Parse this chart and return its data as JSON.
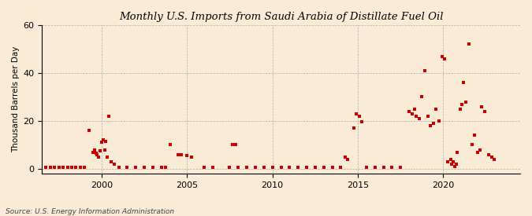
{
  "title": "Monthly U.S. Imports from Saudi Arabia of Distillate Fuel Oil",
  "ylabel": "Thousand Barrels per Day",
  "source": "Source: U.S. Energy Information Administration",
  "background_color": "#faebd7",
  "point_color": "#cc0000",
  "marker_size": 9,
  "ylim": [
    -2,
    60
  ],
  "yticks": [
    0,
    20,
    40,
    60
  ],
  "xtick_labels": [
    "2000",
    "2005",
    "2010",
    "2015",
    "2020"
  ],
  "xtick_positions": [
    2000,
    2005,
    2010,
    2015,
    2020
  ],
  "xlim": [
    1996.5,
    2024.5
  ],
  "data": [
    [
      1996.75,
      0.5
    ],
    [
      1997.0,
      0.5
    ],
    [
      1997.25,
      0.5
    ],
    [
      1997.5,
      0.5
    ],
    [
      1997.75,
      0.5
    ],
    [
      1998.0,
      0.5
    ],
    [
      1998.25,
      0.5
    ],
    [
      1998.5,
      0.5
    ],
    [
      1998.75,
      0.5
    ],
    [
      1999.0,
      0.5
    ],
    [
      1999.0,
      0.5
    ],
    [
      1999.25,
      16.0
    ],
    [
      1999.5,
      7.0
    ],
    [
      1999.58,
      8.0
    ],
    [
      1999.67,
      6.5
    ],
    [
      1999.75,
      6.0
    ],
    [
      1999.83,
      5.0
    ],
    [
      1999.92,
      7.5
    ],
    [
      2000.0,
      11.0
    ],
    [
      2000.08,
      12.0
    ],
    [
      2000.17,
      8.0
    ],
    [
      2000.25,
      11.5
    ],
    [
      2000.33,
      5.0
    ],
    [
      2000.42,
      22.0
    ],
    [
      2000.58,
      3.0
    ],
    [
      2000.75,
      2.0
    ],
    [
      2001.0,
      0.5
    ],
    [
      2001.5,
      0.5
    ],
    [
      2002.0,
      0.5
    ],
    [
      2002.5,
      0.5
    ],
    [
      2003.0,
      0.5
    ],
    [
      2003.5,
      0.5
    ],
    [
      2003.75,
      0.5
    ],
    [
      2004.0,
      10.0
    ],
    [
      2004.5,
      6.0
    ],
    [
      2004.67,
      6.0
    ],
    [
      2005.0,
      5.5
    ],
    [
      2005.25,
      5.0
    ],
    [
      2006.0,
      0.5
    ],
    [
      2006.5,
      0.5
    ],
    [
      2007.5,
      0.5
    ],
    [
      2007.67,
      10.0
    ],
    [
      2007.83,
      10.0
    ],
    [
      2008.0,
      0.5
    ],
    [
      2008.5,
      0.5
    ],
    [
      2009.0,
      0.5
    ],
    [
      2009.5,
      0.5
    ],
    [
      2010.0,
      0.5
    ],
    [
      2010.5,
      0.5
    ],
    [
      2011.0,
      0.5
    ],
    [
      2011.5,
      0.5
    ],
    [
      2012.0,
      0.5
    ],
    [
      2012.5,
      0.5
    ],
    [
      2013.0,
      0.5
    ],
    [
      2013.5,
      0.5
    ],
    [
      2014.0,
      0.5
    ],
    [
      2014.25,
      5.0
    ],
    [
      2014.42,
      4.0
    ],
    [
      2014.75,
      17.0
    ],
    [
      2014.92,
      23.0
    ],
    [
      2015.08,
      22.0
    ],
    [
      2015.25,
      19.5
    ],
    [
      2015.5,
      0.5
    ],
    [
      2016.0,
      0.5
    ],
    [
      2016.5,
      0.5
    ],
    [
      2017.0,
      0.5
    ],
    [
      2017.5,
      0.5
    ],
    [
      2018.0,
      24.0
    ],
    [
      2018.17,
      23.0
    ],
    [
      2018.33,
      25.0
    ],
    [
      2018.42,
      22.0
    ],
    [
      2018.58,
      21.0
    ],
    [
      2018.75,
      30.0
    ],
    [
      2018.92,
      41.0
    ],
    [
      2019.08,
      22.0
    ],
    [
      2019.25,
      18.0
    ],
    [
      2019.42,
      19.0
    ],
    [
      2019.58,
      25.0
    ],
    [
      2019.75,
      20.0
    ],
    [
      2019.92,
      47.0
    ],
    [
      2020.08,
      46.0
    ],
    [
      2020.25,
      3.0
    ],
    [
      2020.42,
      4.0
    ],
    [
      2020.5,
      2.0
    ],
    [
      2020.58,
      3.0
    ],
    [
      2020.67,
      1.0
    ],
    [
      2020.75,
      2.0
    ],
    [
      2020.83,
      7.0
    ],
    [
      2021.0,
      25.0
    ],
    [
      2021.08,
      27.0
    ],
    [
      2021.17,
      36.0
    ],
    [
      2021.33,
      28.0
    ],
    [
      2021.5,
      52.0
    ],
    [
      2021.67,
      10.0
    ],
    [
      2021.83,
      14.0
    ],
    [
      2022.0,
      7.0
    ],
    [
      2022.17,
      8.0
    ],
    [
      2022.25,
      26.0
    ],
    [
      2022.42,
      24.0
    ],
    [
      2022.67,
      6.0
    ],
    [
      2022.83,
      5.0
    ],
    [
      2023.0,
      4.0
    ]
  ]
}
